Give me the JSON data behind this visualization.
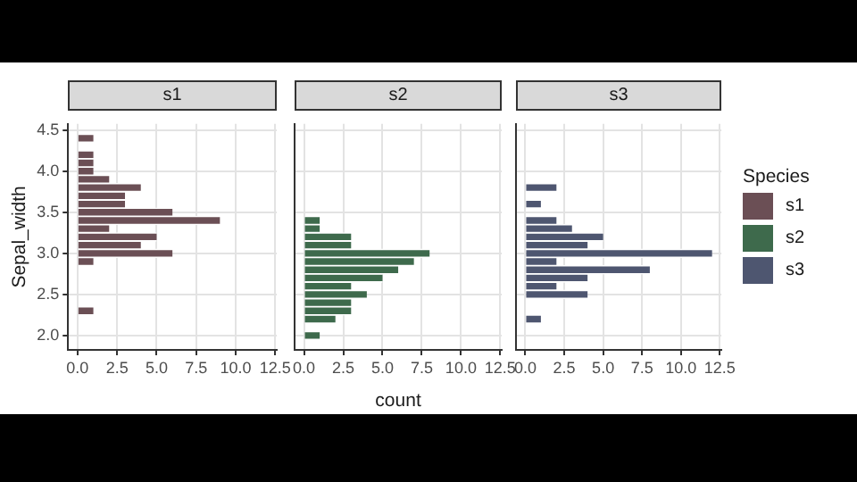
{
  "chart_data": [
    {
      "type": "histogram",
      "orientation": "horizontal",
      "title": "s1",
      "ylabel": "Sepal_width",
      "bins": [
        1.95,
        2.05,
        2.15,
        2.25,
        2.35,
        2.45,
        2.55,
        2.65,
        2.75,
        2.85,
        2.95,
        3.05,
        3.15,
        3.25,
        3.35,
        3.45,
        3.55,
        3.65,
        3.75,
        3.85,
        3.95,
        4.05,
        4.15,
        4.25,
        4.35,
        4.45
      ],
      "series": [
        {
          "name": "s1",
          "color": "#6b4f55",
          "values": [
            0,
            0,
            0,
            1,
            0,
            0,
            0,
            0,
            0,
            1,
            6,
            4,
            5,
            2,
            9,
            6,
            3,
            3,
            4,
            2,
            1,
            1,
            1,
            0,
            1
          ]
        }
      ],
      "xlim": [
        -0.6,
        12.6
      ],
      "xticks": [
        {
          "value": 0,
          "label": "0.0"
        },
        {
          "value": 2.5,
          "label": "2.5"
        },
        {
          "value": 5,
          "label": "5.0"
        },
        {
          "value": 7.5,
          "label": "7.5"
        },
        {
          "value": 10,
          "label": "10.0"
        },
        {
          "value": 12.5,
          "label": "12.5"
        }
      ],
      "ylim": [
        1.825,
        4.575
      ],
      "yticks": [
        {
          "value": 2,
          "label": "2.0"
        },
        {
          "value": 2.5,
          "label": "2.5"
        },
        {
          "value": 3,
          "label": "3.0"
        },
        {
          "value": 3.5,
          "label": "3.5"
        },
        {
          "value": 4,
          "label": "4.0"
        },
        {
          "value": 4.5,
          "label": "4.5"
        }
      ],
      "grid": true
    },
    {
      "type": "histogram",
      "orientation": "horizontal",
      "title": "s2",
      "xlabel": "count",
      "bins": [
        1.95,
        2.05,
        2.15,
        2.25,
        2.35,
        2.45,
        2.55,
        2.65,
        2.75,
        2.85,
        2.95,
        3.05,
        3.15,
        3.25,
        3.35,
        3.45,
        3.55,
        3.65,
        3.75,
        3.85,
        3.95,
        4.05,
        4.15,
        4.25,
        4.35,
        4.45
      ],
      "series": [
        {
          "name": "s2",
          "color": "#3e6a4c",
          "values": [
            1,
            0,
            2,
            3,
            3,
            4,
            3,
            5,
            6,
            7,
            8,
            3,
            3,
            1,
            1,
            0,
            0,
            0,
            0,
            0,
            0,
            0,
            0,
            0,
            0
          ]
        }
      ],
      "xlim": [
        -0.6,
        12.6
      ],
      "xticks": [
        {
          "value": 0,
          "label": "0.0"
        },
        {
          "value": 2.5,
          "label": "2.5"
        },
        {
          "value": 5,
          "label": "5.0"
        },
        {
          "value": 7.5,
          "label": "7.5"
        },
        {
          "value": 10,
          "label": "10.0"
        },
        {
          "value": 12.5,
          "label": "12.5"
        }
      ],
      "ylim": [
        1.825,
        4.575
      ],
      "yticks": [
        2,
        2.5,
        3,
        3.5,
        4,
        4.5
      ],
      "grid": true,
      "tick_labels": "x"
    },
    {
      "type": "histogram",
      "orientation": "horizontal",
      "title": "s3",
      "legend_title": "Species",
      "legend": "right",
      "bins": [
        1.95,
        2.05,
        2.15,
        2.25,
        2.35,
        2.45,
        2.55,
        2.65,
        2.75,
        2.85,
        2.95,
        3.05,
        3.15,
        3.25,
        3.35,
        3.45,
        3.55,
        3.65,
        3.75,
        3.85,
        3.95,
        4.05,
        4.15,
        4.25,
        4.35,
        4.45
      ],
      "series": [
        {
          "name": "s3",
          "color": "#4e5670",
          "values": [
            0,
            0,
            1,
            0,
            0,
            4,
            2,
            4,
            8,
            2,
            12,
            4,
            5,
            3,
            2,
            0,
            1,
            0,
            2,
            0,
            0,
            0,
            0,
            0,
            0
          ]
        }
      ],
      "xlim": [
        -0.6,
        12.6
      ],
      "xticks": [
        {
          "value": 0,
          "label": "0.0"
        },
        {
          "value": 2.5,
          "label": "2.5"
        },
        {
          "value": 5,
          "label": "5.0"
        },
        {
          "value": 7.5,
          "label": "7.5"
        },
        {
          "value": 10,
          "label": "10.0"
        },
        {
          "value": 12.5,
          "label": "12.5"
        }
      ],
      "ylim": [
        1.825,
        4.575
      ],
      "yticks": [
        2,
        2.5,
        3,
        3.5,
        4,
        4.5
      ],
      "grid": true,
      "tick_labels": "x"
    }
  ]
}
